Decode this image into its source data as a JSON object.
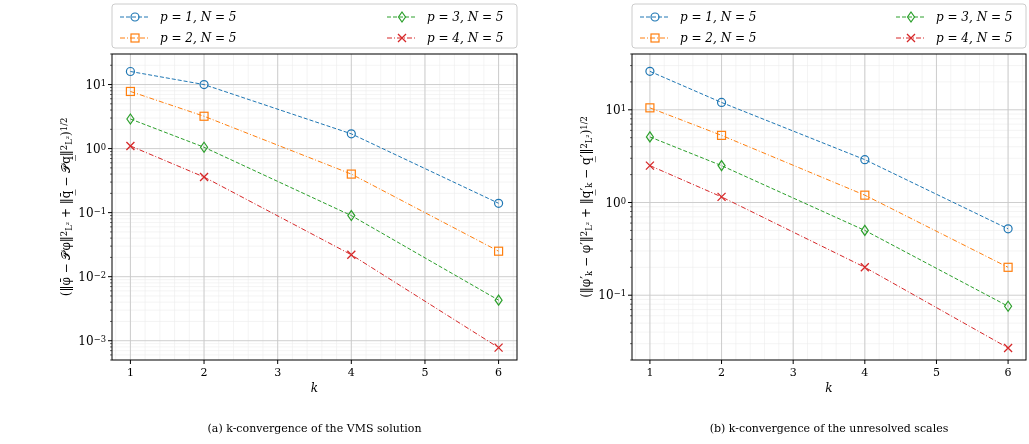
{
  "chart_data": [
    {
      "type": "line",
      "title": "(a) k-convergence of the VMS solution",
      "xlabel": "k",
      "ylabel": "(‖φ̄ − 𝒫φ‖$^{2}$$_{L²}$ + ‖q̲̄ − 𝒫q̲‖$^{2}$$_{L²}$)$^{1/2}$",
      "log": "y",
      "grid": true,
      "legend": "top",
      "xlim": [
        0.75,
        6.25
      ],
      "xticks": [
        1,
        2,
        3,
        4,
        5,
        6
      ],
      "ylim": [
        0.0005,
        30
      ],
      "yticks": [
        {
          "value": 0.001,
          "label": "10$^{−3}$"
        },
        {
          "value": 0.01,
          "label": "10$^{−2}$"
        },
        {
          "value": 0.1,
          "label": "10$^{−1}$"
        },
        {
          "value": 1,
          "label": "10$^{0}$"
        },
        {
          "value": 10,
          "label": "10$^{1}$"
        }
      ],
      "x": [
        1,
        2,
        4,
        6
      ],
      "series": [
        {
          "name": "p = 1, N = 5",
          "color": "#1f77b4",
          "marker": "circle",
          "line_style": "dashed",
          "values": [
            16,
            10,
            1.7,
            0.14
          ]
        },
        {
          "name": "p = 2, N = 5",
          "color": "#ff7f0e",
          "marker": "square",
          "line_style": "dashdot",
          "values": [
            7.8,
            3.2,
            0.4,
            0.025
          ]
        },
        {
          "name": "p = 3, N = 5",
          "color": "#2ca02c",
          "marker": "diamond",
          "line_style": "dashed",
          "values": [
            2.9,
            1.05,
            0.09,
            0.0043
          ]
        },
        {
          "name": "p = 4, N = 5",
          "color": "#d62728",
          "marker": "cross",
          "line_style": "dashdot",
          "values": [
            1.1,
            0.36,
            0.022,
            0.00078
          ]
        }
      ]
    },
    {
      "type": "line",
      "title": "(b) k-convergence of the unresolved scales",
      "xlabel": "k",
      "ylabel": "(‖φ′$_{k}$ − φ′‖$^{2}$$_{L²}$ + ‖q̲′$_{k}$ − q̲′‖$^{2}$$_{L²}$)$^{1/2}$",
      "log": "y",
      "grid": true,
      "legend": "top",
      "xlim": [
        0.75,
        6.25
      ],
      "xticks": [
        1,
        2,
        3,
        4,
        5,
        6
      ],
      "ylim": [
        0.02,
        40
      ],
      "yticks": [
        {
          "value": 0.1,
          "label": "10$^{−1}$"
        },
        {
          "value": 1,
          "label": "10$^{0}$"
        },
        {
          "value": 10,
          "label": "10$^{1}$"
        }
      ],
      "x": [
        1,
        2,
        4,
        6
      ],
      "series": [
        {
          "name": "p = 1, N = 5",
          "color": "#1f77b4",
          "marker": "circle",
          "line_style": "dashed",
          "values": [
            26,
            12,
            2.9,
            0.52
          ]
        },
        {
          "name": "p = 2, N = 5",
          "color": "#ff7f0e",
          "marker": "square",
          "line_style": "dashdot",
          "values": [
            10.5,
            5.3,
            1.2,
            0.2
          ]
        },
        {
          "name": "p = 3, N = 5",
          "color": "#2ca02c",
          "marker": "diamond",
          "line_style": "dashed",
          "values": [
            5.1,
            2.5,
            0.5,
            0.076
          ]
        },
        {
          "name": "p = 4, N = 5",
          "color": "#d62728",
          "marker": "cross",
          "line_style": "dashdot",
          "values": [
            2.5,
            1.15,
            0.2,
            0.027
          ]
        }
      ]
    }
  ]
}
